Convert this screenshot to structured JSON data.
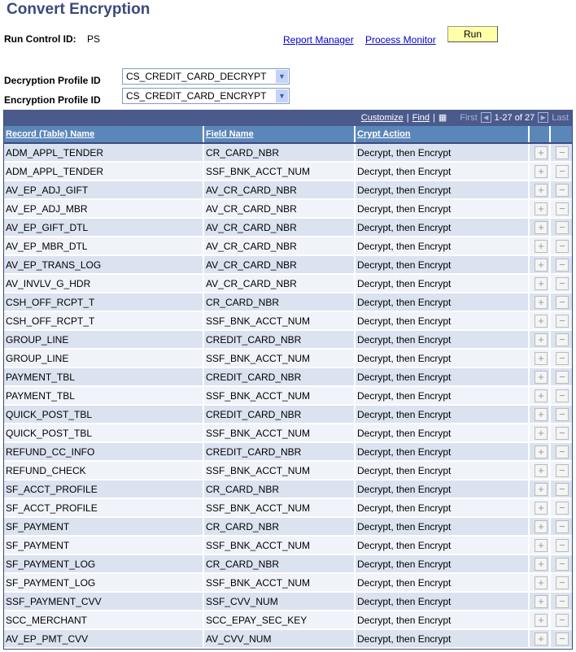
{
  "page_title": "Convert Encryption",
  "run_control": {
    "label": "Run Control ID:",
    "value": "PS"
  },
  "links": {
    "report_manager": "Report Manager",
    "process_monitor": "Process Monitor"
  },
  "run_label": "Run",
  "decryption": {
    "label": "Decryption Profile ID",
    "value": "CS_CREDIT_CARD_DECRYPT"
  },
  "encryption": {
    "label": "Encryption Profile ID",
    "value": "CS_CREDIT_CARD_ENCRYPT"
  },
  "grid": {
    "customize": "Customize",
    "find": "Find",
    "first": "First",
    "range": "1-27 of 27",
    "last": "Last",
    "columns": [
      "Record (Table) Name",
      "Field Name",
      "Crypt Action"
    ],
    "rows": [
      [
        "ADM_APPL_TENDER",
        "CR_CARD_NBR",
        "Decrypt, then Encrypt"
      ],
      [
        "ADM_APPL_TENDER",
        "SSF_BNK_ACCT_NUM",
        "Decrypt, then Encrypt"
      ],
      [
        "AV_EP_ADJ_GIFT",
        "AV_CR_CARD_NBR",
        "Decrypt, then Encrypt"
      ],
      [
        "AV_EP_ADJ_MBR",
        "AV_CR_CARD_NBR",
        "Decrypt, then Encrypt"
      ],
      [
        "AV_EP_GIFT_DTL",
        "AV_CR_CARD_NBR",
        "Decrypt, then Encrypt"
      ],
      [
        "AV_EP_MBR_DTL",
        "AV_CR_CARD_NBR",
        "Decrypt, then Encrypt"
      ],
      [
        "AV_EP_TRANS_LOG",
        "AV_CR_CARD_NBR",
        "Decrypt, then Encrypt"
      ],
      [
        "AV_INVLV_G_HDR",
        "AV_CR_CARD_NBR",
        "Decrypt, then Encrypt"
      ],
      [
        "CSH_OFF_RCPT_T",
        "CR_CARD_NBR",
        "Decrypt, then Encrypt"
      ],
      [
        "CSH_OFF_RCPT_T",
        "SSF_BNK_ACCT_NUM",
        "Decrypt, then Encrypt"
      ],
      [
        "GROUP_LINE",
        "CREDIT_CARD_NBR",
        "Decrypt, then Encrypt"
      ],
      [
        "GROUP_LINE",
        "SSF_BNK_ACCT_NUM",
        "Decrypt, then Encrypt"
      ],
      [
        "PAYMENT_TBL",
        "CREDIT_CARD_NBR",
        "Decrypt, then Encrypt"
      ],
      [
        "PAYMENT_TBL",
        "SSF_BNK_ACCT_NUM",
        "Decrypt, then Encrypt"
      ],
      [
        "QUICK_POST_TBL",
        "CREDIT_CARD_NBR",
        "Decrypt, then Encrypt"
      ],
      [
        "QUICK_POST_TBL",
        "SSF_BNK_ACCT_NUM",
        "Decrypt, then Encrypt"
      ],
      [
        "REFUND_CC_INFO",
        "CREDIT_CARD_NBR",
        "Decrypt, then Encrypt"
      ],
      [
        "REFUND_CHECK",
        "SSF_BNK_ACCT_NUM",
        "Decrypt, then Encrypt"
      ],
      [
        "SF_ACCT_PROFILE",
        "CR_CARD_NBR",
        "Decrypt, then Encrypt"
      ],
      [
        "SF_ACCT_PROFILE",
        "SSF_BNK_ACCT_NUM",
        "Decrypt, then Encrypt"
      ],
      [
        "SF_PAYMENT",
        "CR_CARD_NBR",
        "Decrypt, then Encrypt"
      ],
      [
        "SF_PAYMENT",
        "SSF_BNK_ACCT_NUM",
        "Decrypt, then Encrypt"
      ],
      [
        "SF_PAYMENT_LOG",
        "CR_CARD_NBR",
        "Decrypt, then Encrypt"
      ],
      [
        "SF_PAYMENT_LOG",
        "SSF_BNK_ACCT_NUM",
        "Decrypt, then Encrypt"
      ],
      [
        "SSF_PAYMENT_CVV",
        "SSF_CVV_NUM",
        "Decrypt, then Encrypt"
      ],
      [
        "SCC_MERCHANT",
        "SCC_EPAY_SEC_KEY",
        "Decrypt, then Encrypt"
      ],
      [
        "AV_EP_PMT_CVV",
        "AV_CVV_NUM",
        "Decrypt, then Encrypt"
      ]
    ]
  }
}
